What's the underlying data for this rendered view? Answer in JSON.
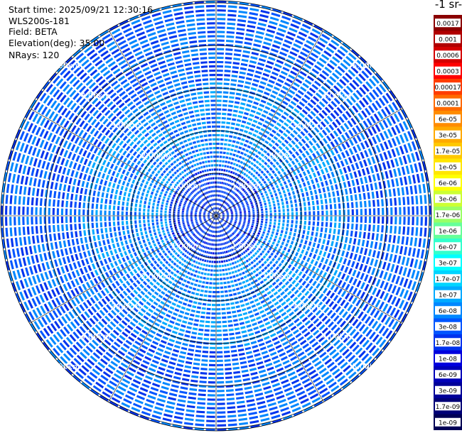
{
  "header": {
    "start_time": "Start time: 2025/09/21 12:30:16",
    "instrument": "WLS200s-181",
    "field": "Field: BETA",
    "elevation": "Elevation(deg): 35.00",
    "nrays": "NRays: 120"
  },
  "colorbar": {
    "unit_fragment": "-1 sr-",
    "labels": [
      "0.0017",
      "0.001",
      "0.0006",
      "0.0003",
      "0.00017",
      "0.0001",
      "6e-05",
      "3e-05",
      "1.7e-05",
      "1e-05",
      "6e-06",
      "3e-06",
      "1.7e-06",
      "1e-06",
      "6e-07",
      "3e-07",
      "1.7e-07",
      "1e-07",
      "6e-08",
      "3e-08",
      "1.7e-08",
      "1e-08",
      "6e-09",
      "3e-09",
      "1.7e-09",
      "1e-09"
    ],
    "colors": [
      "#8b0000",
      "#b00000",
      "#d40000",
      "#ff0000",
      "#ff3c00",
      "#ff6a00",
      "#ff8c00",
      "#ffaa00",
      "#ffc800",
      "#ffe600",
      "#ffff00",
      "#ccff33",
      "#99ff66",
      "#66ff99",
      "#33ffcc",
      "#00ffff",
      "#00d4ff",
      "#00aaff",
      "#0088ff",
      "#0055ff",
      "#0033ee",
      "#0000dd",
      "#0000b8",
      "#000099",
      "#000077",
      "#000055"
    ]
  },
  "chart_data": {
    "type": "heatmap",
    "projection": "polar (PPI scan)",
    "field": "BETA",
    "elevation_deg": 35.0,
    "n_rays": 120,
    "range_rings_km": [
      1.0,
      2.0,
      3.0,
      4.0,
      5.0
    ],
    "range_labels": [
      "1.00km",
      "2.00km",
      "3.00km",
      "4.00km",
      "5.00km"
    ],
    "max_range_km": 5.0,
    "typical_value_range": [
      1e-08,
      1.7e-07
    ],
    "colorbar_scale": "log"
  }
}
